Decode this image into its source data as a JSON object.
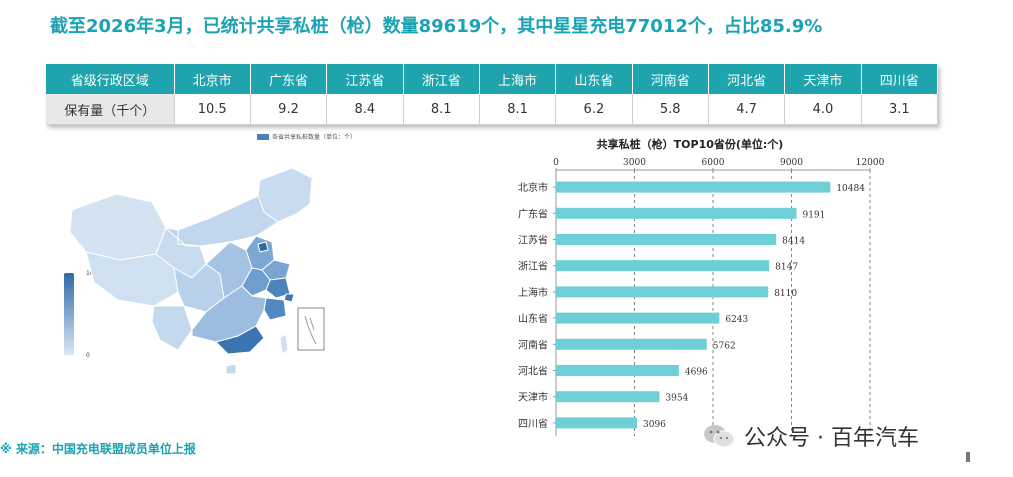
{
  "headline": "截至2026年3月，已统计共享私桩（枪）数量89619个，其中星星充电77012个，占比85.9%",
  "table": {
    "header_label": "省级行政区域",
    "row_label": "保有量（千个）",
    "provinces": [
      "北京市",
      "广东省",
      "江苏省",
      "浙江省",
      "上海市",
      "山东省",
      "河南省",
      "河北省",
      "天津市",
      "四川省"
    ],
    "values": [
      "10.5",
      "9.2",
      "8.4",
      "8.1",
      "8.1",
      "6.2",
      "5.8",
      "4.7",
      "4.0",
      "3.1"
    ]
  },
  "map": {
    "legend_label": "各省共享私桩数量（单位：个）",
    "scale_max": "10484",
    "scale_min": "0",
    "color_high": "#2e6aa6",
    "color_low": "#d9e7f4"
  },
  "chart_data": {
    "type": "bar",
    "orientation": "horizontal",
    "title": "共享私桩（枪）TOP10省份(单位:个)",
    "categories": [
      "北京市",
      "广东省",
      "江苏省",
      "浙江省",
      "上海市",
      "山东省",
      "河南省",
      "河北省",
      "天津市",
      "四川省"
    ],
    "values": [
      10484,
      9191,
      8414,
      8147,
      8110,
      6243,
      5762,
      4696,
      3954,
      3096
    ],
    "xlim": [
      0,
      12000
    ],
    "xticks": [
      0,
      3000,
      6000,
      9000,
      12000
    ],
    "axis_position": "top",
    "grid": true,
    "bar_color": "#6fcfd6"
  },
  "source": "※  来源：中国充电联盟成员单位上报",
  "watermark": "公众号 · 百年汽车"
}
